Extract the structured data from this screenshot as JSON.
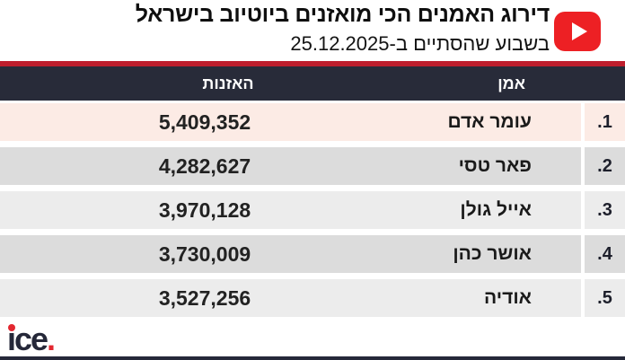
{
  "header": {
    "title": "דירוג האמנים הכי מואזנים ביוטיוב בישראל",
    "subtitle": "בשבוע שהסתיים ב-25.12.2025",
    "youtube_icon": "youtube-play-icon"
  },
  "table": {
    "columns": {
      "listens": "האזנות",
      "artist": "אמן"
    },
    "rows": [
      {
        "rank": ".1",
        "artist": "עומר אדם",
        "listens": "5,409,352"
      },
      {
        "rank": ".2",
        "artist": "פאר טסי",
        "listens": "4,282,627"
      },
      {
        "rank": ".3",
        "artist": "אייל גולן",
        "listens": "3,970,128"
      },
      {
        "rank": ".4",
        "artist": "אושר כהן",
        "listens": "3,730,009"
      },
      {
        "rank": ".5",
        "artist": "אודיה",
        "listens": "3,527,256"
      }
    ]
  },
  "footer": {
    "logo_text": "ice",
    "logo_dot": "."
  },
  "colors": {
    "accent_red_bar": "#be1e2d",
    "youtube_red": "#ed2024",
    "header_bg": "#282b39",
    "row_highlight_pink": "#fcebe5",
    "row_gray_dark": "#dcdcdc",
    "row_gray_light": "#ececec",
    "logo_navy": "#252839",
    "logo_red": "#e32730"
  },
  "chart_data": {
    "type": "table",
    "title": "דירוג האמנים הכי מואזנים ביוטיוב בישראל",
    "subtitle": "בשבוע שהסתיים ב-25.12.2025",
    "columns": [
      "אמן",
      "האזנות"
    ],
    "rows": [
      [
        "עומר אדם",
        5409352
      ],
      [
        "פאר טסי",
        4282627
      ],
      [
        "אייל גולן",
        3970128
      ],
      [
        "אושר כהן",
        3730009
      ],
      [
        "אודיה",
        3527256
      ]
    ],
    "layout_hints": {
      "direction": "rtl",
      "rank_column": "right",
      "row_1_highlighted": true
    }
  }
}
